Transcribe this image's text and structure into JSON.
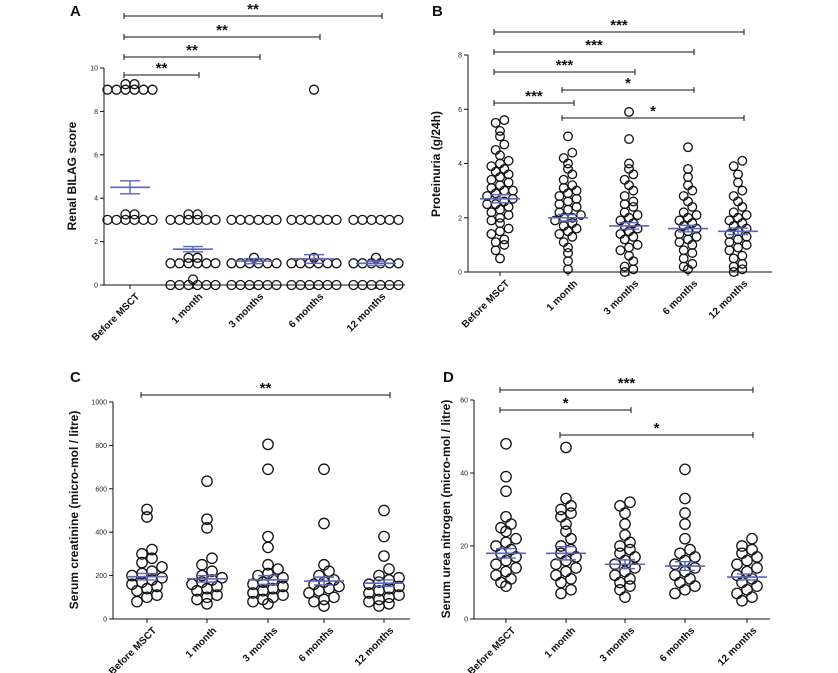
{
  "chart_data": [
    {
      "type": "scatter",
      "panel": "A",
      "ylabel": "Renal BILAG score",
      "ylim": [
        0,
        10
      ],
      "yticks": [
        0,
        2,
        4,
        6,
        8,
        10
      ],
      "categories": [
        "Before MSCT",
        "1 month",
        "3 months",
        "6 months",
        "12 months"
      ],
      "means": [
        4.5,
        1.65,
        1.1,
        1.2,
        1.0
      ],
      "sem": [
        0.3,
        0.12,
        0.12,
        0.2,
        0.1
      ],
      "points": [
        [
          9,
          9,
          9,
          9,
          9,
          9,
          9,
          9,
          3,
          3,
          3,
          3,
          3,
          3,
          3,
          3
        ],
        [
          3,
          3,
          3,
          3,
          3,
          3,
          3,
          3,
          1,
          1,
          1,
          1,
          1,
          1,
          1,
          1,
          0,
          0,
          0,
          0,
          0,
          0,
          0
        ],
        [
          3,
          3,
          3,
          3,
          3,
          3,
          1,
          1,
          1,
          1,
          1,
          1,
          1,
          0,
          0,
          0,
          0,
          0,
          0
        ],
        [
          9,
          3,
          3,
          3,
          3,
          3,
          3,
          1,
          1,
          1,
          1,
          1,
          1,
          1,
          0,
          0,
          0,
          0,
          0,
          0
        ],
        [
          3,
          3,
          3,
          3,
          3,
          3,
          1,
          1,
          1,
          1,
          1,
          1,
          1,
          0,
          0,
          0,
          0,
          0,
          0
        ]
      ],
      "comparisons": [
        {
          "from": 0,
          "to": 1,
          "label": "**"
        },
        {
          "from": 0,
          "to": 2,
          "label": "**"
        },
        {
          "from": 0,
          "to": 3,
          "label": "**"
        },
        {
          "from": 0,
          "to": 4,
          "label": "**"
        }
      ]
    },
    {
      "type": "scatter",
      "panel": "B",
      "ylabel": "Proteinuria (g/24h)",
      "ylim": [
        0,
        8
      ],
      "yticks": [
        0,
        2,
        4,
        6,
        8
      ],
      "categories": [
        "Before MSCT",
        "1 month",
        "3 months",
        "6 months",
        "12 months"
      ],
      "means": [
        2.7,
        2.0,
        1.7,
        1.6,
        1.5
      ],
      "sem": [
        0.15,
        0.12,
        0.12,
        0.12,
        0.12
      ],
      "points": [
        [
          0.5,
          0.8,
          1.0,
          1.1,
          1.2,
          1.4,
          1.5,
          1.6,
          1.8,
          1.9,
          2.0,
          2.1,
          2.2,
          2.3,
          2.4,
          2.5,
          2.5,
          2.6,
          2.7,
          2.8,
          2.9,
          3.0,
          3.0,
          3.1,
          3.2,
          3.3,
          3.4,
          3.5,
          3.6,
          3.7,
          3.8,
          3.9,
          4.0,
          4.1,
          4.3,
          4.5,
          4.7,
          5.0,
          5.2,
          5.5,
          5.6
        ],
        [
          0.1,
          0.4,
          0.7,
          0.9,
          1.1,
          1.3,
          1.4,
          1.5,
          1.6,
          1.7,
          1.8,
          1.9,
          2.0,
          2.0,
          2.1,
          2.2,
          2.3,
          2.4,
          2.5,
          2.6,
          2.7,
          2.8,
          2.9,
          3.0,
          3.1,
          3.2,
          3.4,
          3.6,
          3.8,
          4.0,
          4.2,
          4.4,
          5.0
        ],
        [
          0.0,
          0.1,
          0.2,
          0.4,
          0.6,
          0.8,
          0.9,
          1.0,
          1.2,
          1.3,
          1.4,
          1.5,
          1.6,
          1.7,
          1.8,
          1.9,
          2.0,
          2.1,
          2.2,
          2.4,
          2.5,
          2.6,
          2.8,
          3.0,
          3.2,
          3.4,
          3.6,
          3.8,
          4.0,
          4.9,
          5.9
        ],
        [
          0.1,
          0.2,
          0.3,
          0.5,
          0.7,
          0.8,
          1.0,
          1.1,
          1.2,
          1.3,
          1.4,
          1.5,
          1.6,
          1.7,
          1.8,
          1.9,
          2.0,
          2.1,
          2.2,
          2.4,
          2.6,
          2.8,
          3.0,
          3.2,
          3.5,
          3.8,
          4.6
        ],
        [
          0.0,
          0.1,
          0.2,
          0.3,
          0.5,
          0.6,
          0.8,
          0.9,
          1.0,
          1.1,
          1.2,
          1.3,
          1.4,
          1.5,
          1.6,
          1.7,
          1.8,
          1.9,
          2.0,
          2.1,
          2.2,
          2.4,
          2.6,
          2.8,
          3.0,
          3.3,
          3.6,
          3.9,
          4.1
        ]
      ],
      "comparisons": [
        {
          "from": 0,
          "to": 1,
          "label": "***"
        },
        {
          "from": 0,
          "to": 2,
          "label": "***"
        },
        {
          "from": 0,
          "to": 3,
          "label": "***"
        },
        {
          "from": 0,
          "to": 4,
          "label": "***"
        },
        {
          "from": 1,
          "to": 3,
          "label": "*"
        },
        {
          "from": 1,
          "to": 4,
          "label": "*"
        }
      ]
    },
    {
      "type": "scatter",
      "panel": "C",
      "ylabel": "Serum creatinine (micro-mol / litre)",
      "ylim": [
        0,
        1000
      ],
      "yticks": [
        0,
        200,
        400,
        600,
        800,
        1000
      ],
      "categories": [
        "Before MSCT",
        "1 month",
        "3 months",
        "6 months",
        "12 months"
      ],
      "means": [
        195,
        185,
        180,
        175,
        165
      ],
      "sem": [
        15,
        15,
        20,
        18,
        15
      ],
      "points": [
        [
          80,
          100,
          110,
          130,
          140,
          150,
          160,
          170,
          180,
          190,
          200,
          210,
          220,
          240,
          260,
          280,
          300,
          320,
          470,
          505
        ],
        [
          70,
          90,
          100,
          110,
          130,
          140,
          150,
          160,
          170,
          180,
          190,
          200,
          220,
          250,
          280,
          420,
          460,
          635
        ],
        [
          70,
          80,
          90,
          100,
          110,
          120,
          130,
          140,
          150,
          160,
          170,
          180,
          190,
          200,
          210,
          230,
          250,
          330,
          380,
          690,
          805
        ],
        [
          60,
          80,
          90,
          100,
          120,
          130,
          140,
          150,
          160,
          170,
          180,
          200,
          220,
          250,
          440,
          690
        ],
        [
          60,
          70,
          80,
          90,
          100,
          110,
          120,
          130,
          140,
          150,
          160,
          170,
          180,
          190,
          200,
          230,
          290,
          380,
          500
        ]
      ],
      "comparisons": [
        {
          "from": 0,
          "to": 4,
          "label": "**"
        }
      ]
    },
    {
      "type": "scatter",
      "panel": "D",
      "ylabel": "Serum urea nitrogen (micro-mol / litre)",
      "ylim": [
        0,
        60
      ],
      "yticks": [
        0,
        20,
        40,
        60
      ],
      "categories": [
        "Before MSCT",
        "1 month",
        "3 months",
        "6 months",
        "12 months"
      ],
      "means": [
        18,
        18,
        15,
        14.5,
        11.5
      ],
      "sem": [
        1.3,
        1.8,
        1.2,
        1.2,
        0.8
      ],
      "points": [
        [
          9,
          10,
          11,
          12,
          13,
          14,
          15,
          16,
          17,
          18,
          19,
          20,
          21,
          22,
          24,
          25,
          26,
          28,
          35,
          39,
          48
        ],
        [
          7,
          8,
          10,
          11,
          12,
          13,
          14,
          15,
          16,
          17,
          18,
          19,
          20,
          22,
          24,
          26,
          28,
          29,
          30,
          31,
          33,
          47
        ],
        [
          6,
          8,
          9,
          10,
          11,
          12,
          13,
          14,
          15,
          16,
          17,
          18,
          19,
          20,
          21,
          23,
          26,
          29,
          31,
          32
        ],
        [
          7,
          8,
          9,
          10,
          11,
          12,
          13,
          14,
          15,
          16,
          17,
          18,
          19,
          22,
          26,
          29,
          33,
          41
        ],
        [
          5,
          6,
          7,
          8,
          9,
          10,
          11,
          12,
          13,
          14,
          15,
          16,
          17,
          18,
          19,
          20,
          22
        ]
      ],
      "comparisons": [
        {
          "from": 0,
          "to": 2,
          "label": "*"
        },
        {
          "from": 0,
          "to": 4,
          "label": "***"
        },
        {
          "from": 1,
          "to": 4,
          "label": "*"
        }
      ]
    }
  ]
}
